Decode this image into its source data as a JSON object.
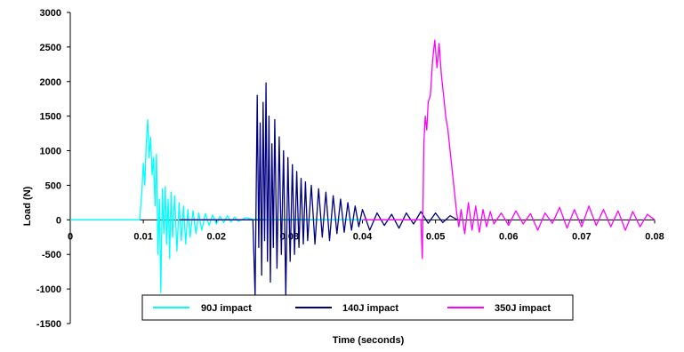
{
  "chart_data": {
    "type": "line",
    "title": "",
    "xlabel": "Time (seconds)",
    "ylabel": "Load (N)",
    "xlim": [
      0,
      0.08
    ],
    "ylim": [
      -1500,
      3000
    ],
    "x_ticks": [
      "0",
      "0.01",
      "0.02",
      "0.03",
      "0.04",
      "0.05",
      "0.06",
      "0.07",
      "0.08"
    ],
    "y_ticks": [
      "-1500",
      "-1000",
      "-500",
      "0",
      "500",
      "1000",
      "1500",
      "2000",
      "2500",
      "3000"
    ],
    "grid": false,
    "legend_position": "bottom",
    "series": [
      {
        "name": "90J impact",
        "color": "#00ffff",
        "x": [
          0,
          0.009,
          0.0095,
          0.0098,
          0.01,
          0.0102,
          0.0104,
          0.0106,
          0.0108,
          0.011,
          0.0112,
          0.0114,
          0.0116,
          0.0118,
          0.012,
          0.0122,
          0.0124,
          0.0126,
          0.0128,
          0.013,
          0.0132,
          0.0134,
          0.0136,
          0.0138,
          0.014,
          0.0143,
          0.0146,
          0.0149,
          0.0152,
          0.0155,
          0.0158,
          0.0161,
          0.0164,
          0.0168,
          0.0172,
          0.0176,
          0.018,
          0.0185,
          0.019,
          0.0195,
          0.02,
          0.0205,
          0.021,
          0.0215,
          0.022,
          0.0225,
          0.023,
          0.024,
          0.025,
          0.026,
          0.027,
          0.03,
          0.035,
          0.04
        ],
        "values": [
          0,
          0,
          0,
          400,
          820,
          500,
          1100,
          1450,
          900,
          1200,
          650,
          900,
          200,
          950,
          -500,
          300,
          -1050,
          450,
          -200,
          480,
          -350,
          300,
          -560,
          400,
          -250,
          350,
          -450,
          250,
          -300,
          200,
          -350,
          150,
          -250,
          130,
          -200,
          100,
          -150,
          90,
          -80,
          70,
          -60,
          50,
          -40,
          60,
          -30,
          40,
          -20,
          30,
          10,
          20,
          0,
          10,
          0,
          0
        ]
      },
      {
        "name": "140J impact",
        "color": "#000080",
        "x": [
          0.015,
          0.025,
          0.0253,
          0.0256,
          0.0258,
          0.026,
          0.0262,
          0.0264,
          0.0266,
          0.0268,
          0.027,
          0.0272,
          0.0274,
          0.0276,
          0.0278,
          0.028,
          0.0283,
          0.0286,
          0.0289,
          0.0292,
          0.0295,
          0.0298,
          0.0301,
          0.0304,
          0.0307,
          0.031,
          0.0313,
          0.0316,
          0.0319,
          0.0322,
          0.0325,
          0.033,
          0.0335,
          0.034,
          0.0345,
          0.035,
          0.0355,
          0.036,
          0.0365,
          0.037,
          0.0375,
          0.038,
          0.0385,
          0.039,
          0.0395,
          0.04,
          0.041,
          0.042,
          0.043,
          0.044,
          0.045,
          0.046,
          0.047,
          0.048,
          0.049,
          0.05,
          0.051,
          0.052,
          0.053
        ],
        "values": [
          0,
          0,
          -1100,
          1800,
          -400,
          1400,
          -800,
          1700,
          -300,
          1980,
          -600,
          1500,
          -900,
          1100,
          -400,
          1450,
          -700,
          1200,
          -500,
          1000,
          -1100,
          900,
          -600,
          800,
          -500,
          700,
          -400,
          600,
          -350,
          550,
          -300,
          500,
          -350,
          450,
          -250,
          400,
          -300,
          350,
          -200,
          300,
          -180,
          250,
          -150,
          200,
          -100,
          150,
          -150,
          100,
          -80,
          80,
          -120,
          100,
          -60,
          120,
          -50,
          100,
          -40,
          60,
          0
        ]
      },
      {
        "name": "350J impact",
        "color": "#ff00ff",
        "x": [
          0.04,
          0.048,
          0.0482,
          0.0484,
          0.0486,
          0.0488,
          0.049,
          0.0493,
          0.0496,
          0.0499,
          0.0502,
          0.0505,
          0.0508,
          0.0511,
          0.0514,
          0.0517,
          0.052,
          0.0523,
          0.0526,
          0.0529,
          0.0532,
          0.0535,
          0.054,
          0.0545,
          0.055,
          0.0555,
          0.056,
          0.0565,
          0.057,
          0.0575,
          0.058,
          0.059,
          0.06,
          0.061,
          0.062,
          0.063,
          0.064,
          0.065,
          0.066,
          0.067,
          0.068,
          0.069,
          0.07,
          0.071,
          0.072,
          0.073,
          0.074,
          0.075,
          0.076,
          0.077,
          0.078,
          0.079,
          0.08
        ],
        "values": [
          0,
          0,
          -560,
          1100,
          1500,
          1300,
          1700,
          1800,
          2300,
          2600,
          2200,
          2550,
          2100,
          1800,
          1500,
          1300,
          1000,
          700,
          400,
          100,
          -100,
          150,
          -200,
          250,
          -150,
          200,
          -180,
          150,
          -100,
          120,
          -60,
          100,
          -80,
          130,
          -60,
          90,
          -150,
          100,
          -50,
          180,
          -120,
          150,
          -100,
          200,
          -80,
          150,
          -100,
          130,
          -150,
          120,
          -100,
          80,
          0
        ]
      }
    ]
  }
}
